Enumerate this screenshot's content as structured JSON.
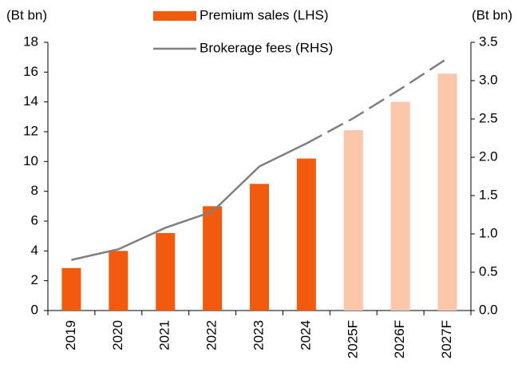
{
  "chart_data": {
    "type": "bar_line",
    "y_label": "(Bt bn)",
    "y2_label": "(Bt bn)",
    "categories": [
      "2019",
      "2020",
      "2021",
      "2022",
      "2023",
      "2024",
      "2025F",
      "2026F",
      "2027F"
    ],
    "series": [
      {
        "name": "Premium sales (LHS)",
        "type": "bar",
        "color": "#f25a0e",
        "colors": [
          "#f25a0e",
          "#f25a0e",
          "#f25a0e",
          "#f25a0e",
          "#f25a0e",
          "#f25a0e",
          "#fbc6a9",
          "#fbc6a9",
          "#fbc6a9"
        ],
        "values": [
          2.85,
          4.0,
          5.2,
          7.0,
          8.5,
          10.2,
          12.1,
          14.0,
          15.9
        ]
      },
      {
        "name": "Brokerage fees (RHS)",
        "type": "line",
        "axis": "y2",
        "color": "#7f7f7f",
        "dashed_from": "2024",
        "values": [
          0.66,
          0.8,
          1.08,
          1.29,
          1.88,
          2.18,
          2.51,
          2.89,
          3.29
        ]
      }
    ],
    "ylim": [
      0,
      18
    ],
    "yticks": [
      0,
      2,
      4,
      6,
      8,
      10,
      12,
      14,
      16,
      18
    ],
    "y2lim": [
      0,
      3.5
    ],
    "y2ticks": [
      {
        "value": 0,
        "label": "0.0"
      },
      0.5,
      {
        "value": 1,
        "label": "1.0"
      },
      1.5,
      {
        "value": 2,
        "label": "2.0"
      },
      2.5,
      {
        "value": 3,
        "label": "3.0"
      },
      3.5
    ],
    "grid": false,
    "legend": "top"
  }
}
